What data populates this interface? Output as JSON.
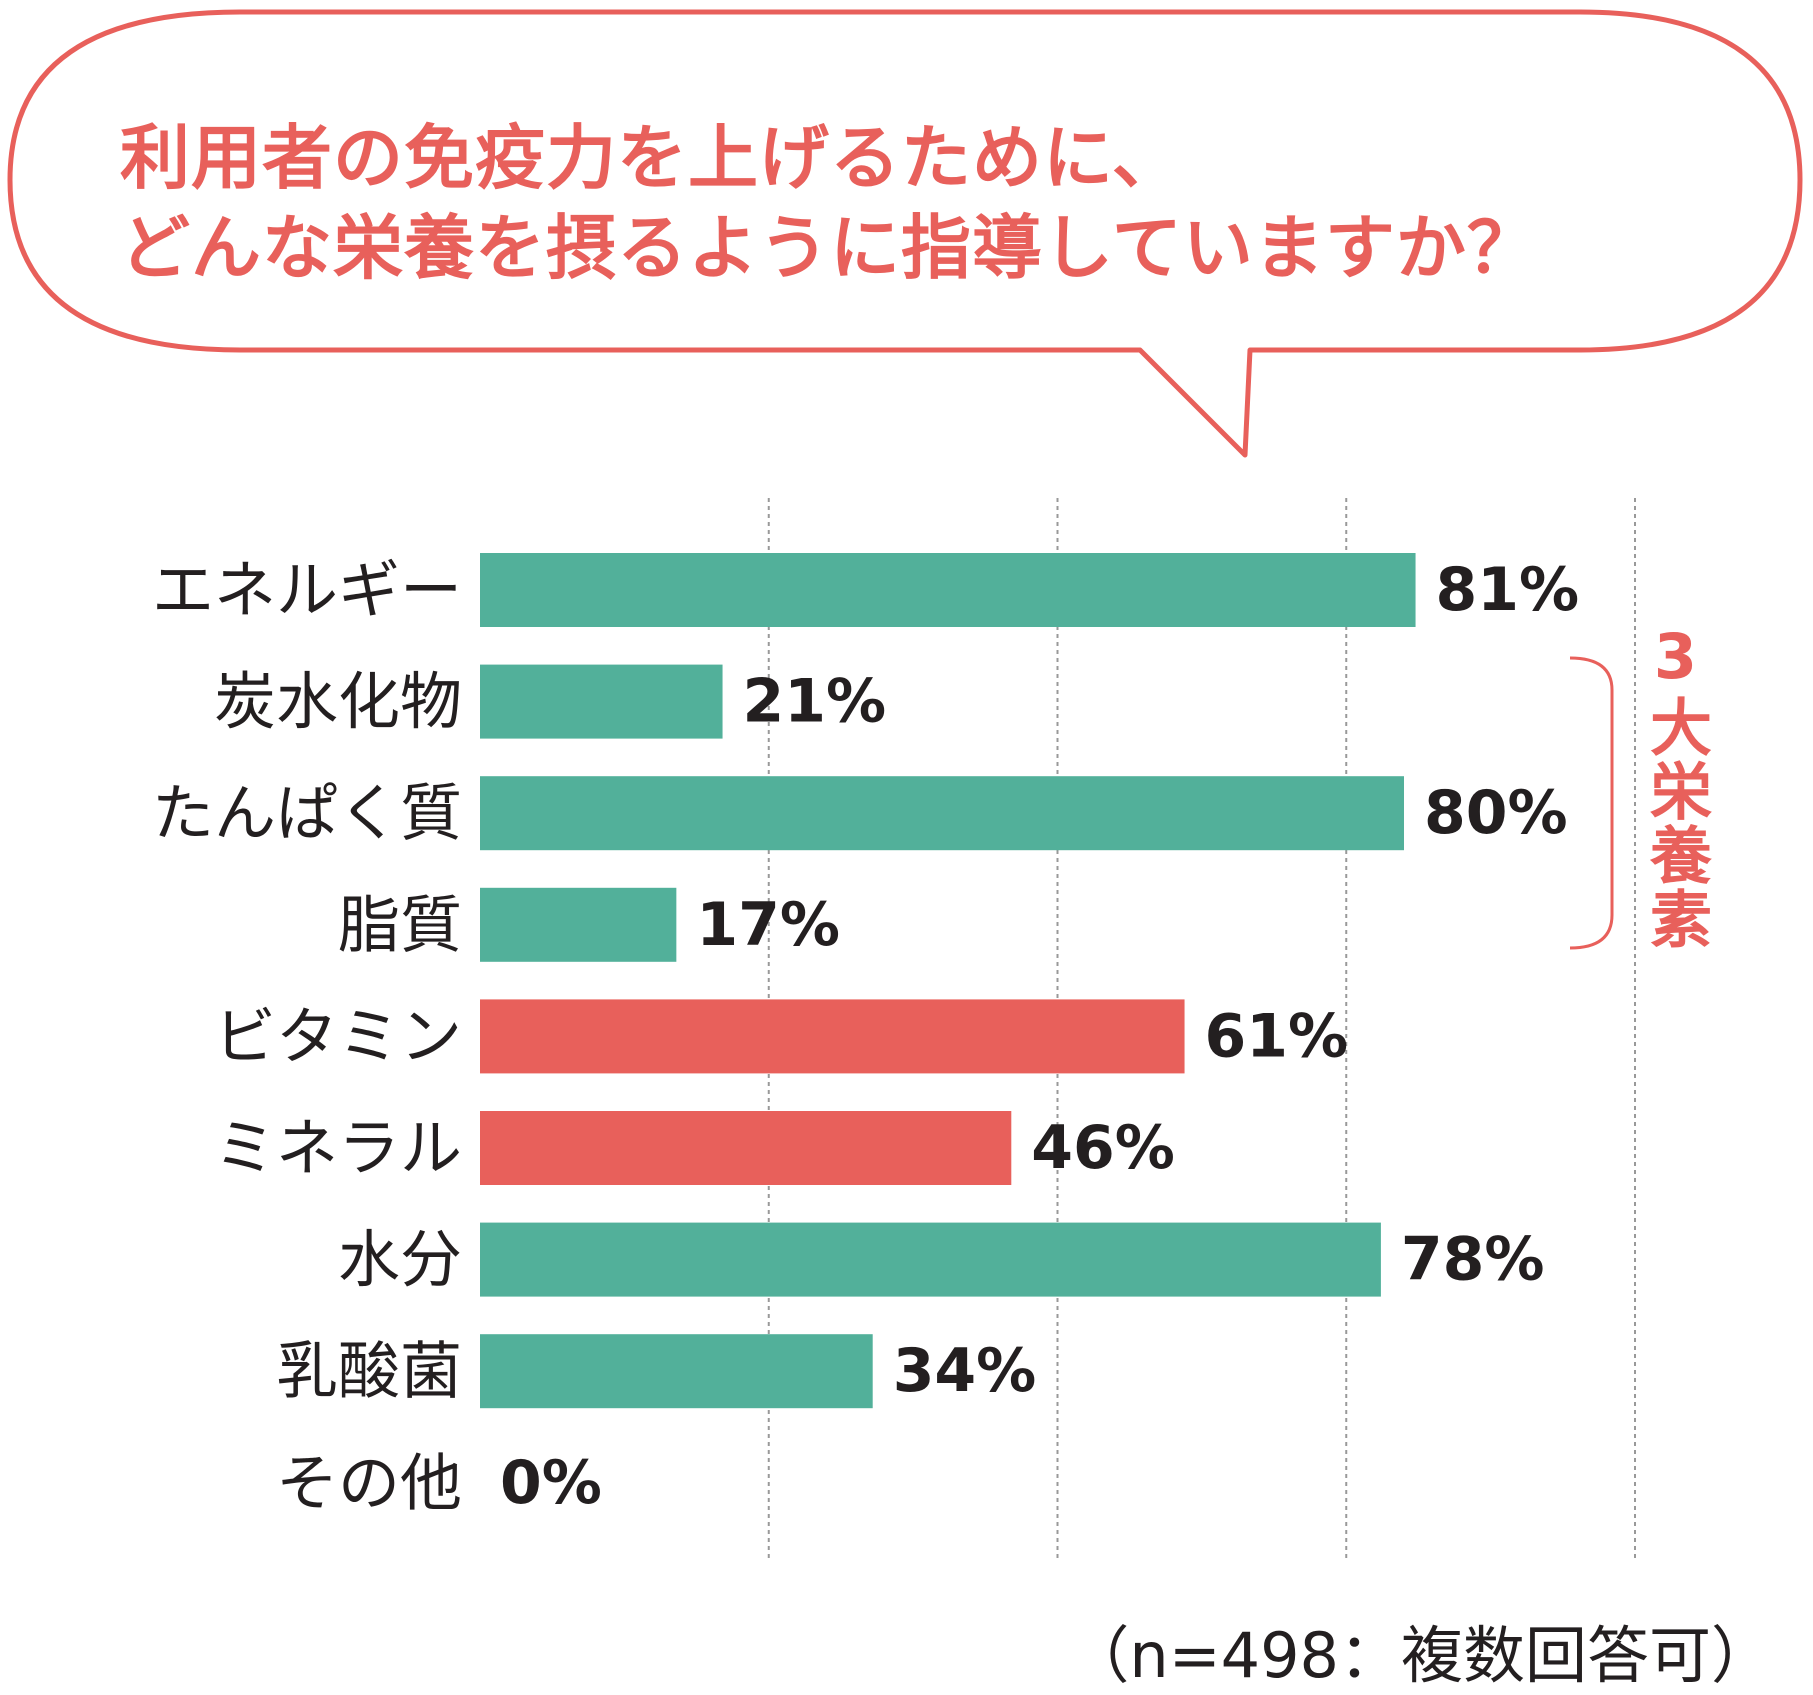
{
  "title": {
    "line1": "利用者の免疫力を上げるために、",
    "line2": "どんな栄養を摂るように指導していますか？"
  },
  "bracket_label": "3大栄養素",
  "footnote": "（n=498：複数回答可）",
  "colors": {
    "teal": "#52b09a",
    "red": "#e8605b",
    "text": "#231f20",
    "grid": "#999999"
  },
  "chart_data": {
    "type": "bar",
    "orientation": "horizontal",
    "categories": [
      "エネルギー",
      "炭水化物",
      "たんぱく質",
      "脂質",
      "ビタミン",
      "ミネラル",
      "水分",
      "乳酸菌",
      "その他"
    ],
    "values": [
      81,
      21,
      80,
      17,
      61,
      46,
      78,
      34,
      0
    ],
    "value_labels": [
      "81%",
      "21%",
      "80%",
      "17%",
      "61%",
      "46%",
      "78%",
      "34%",
      "0%"
    ],
    "bar_colors": [
      "teal",
      "teal",
      "teal",
      "teal",
      "red",
      "red",
      "teal",
      "teal",
      "teal"
    ],
    "xlim": [
      0,
      100
    ],
    "grid": true,
    "bracket": {
      "label": "3大栄養素",
      "from_category": "炭水化物",
      "to_category": "脂質"
    }
  }
}
